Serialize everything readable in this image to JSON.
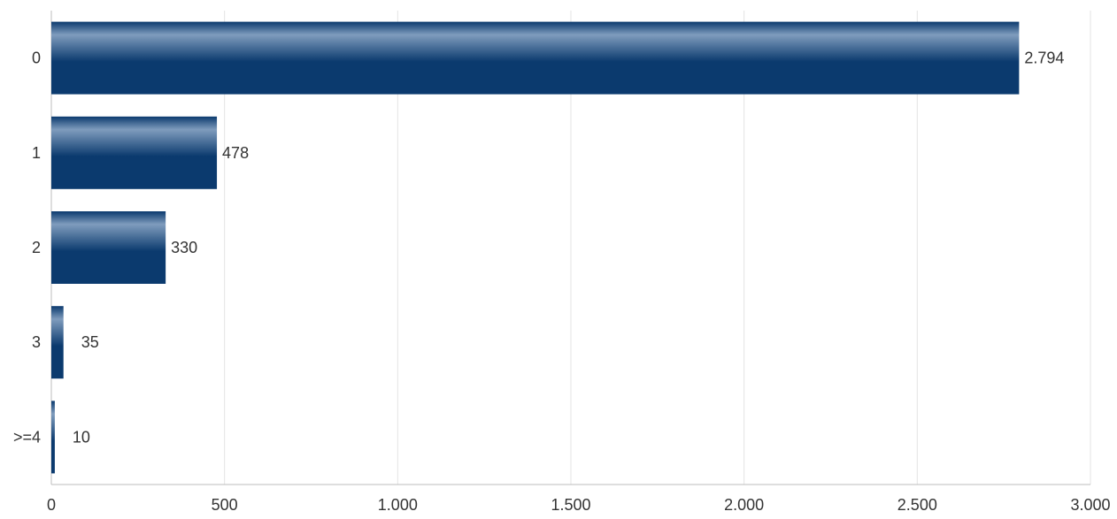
{
  "chart_data": {
    "type": "bar",
    "orientation": "horizontal",
    "categories": [
      "0",
      "1",
      "2",
      "3",
      ">=4"
    ],
    "values": [
      2794,
      478,
      330,
      35,
      10
    ],
    "value_labels": [
      "2.794",
      "478",
      "330",
      "35",
      "10"
    ],
    "title": "",
    "xlabel": "",
    "ylabel": "",
    "xlim": [
      0,
      3000
    ],
    "x_ticks": [
      0,
      500,
      1000,
      1500,
      2000,
      2500,
      3000
    ],
    "x_tick_labels": [
      "0",
      "500",
      "1.000",
      "1.500",
      "2.000",
      "2.500",
      "3.000"
    ],
    "grid": "vertical",
    "legend": "none",
    "colors": {
      "bar_dark": "#0b3a6e",
      "bar_light": "#7f9cbd",
      "grid": "#e3e3e3",
      "axis": "#bdbdbd",
      "text": "#333333"
    }
  }
}
